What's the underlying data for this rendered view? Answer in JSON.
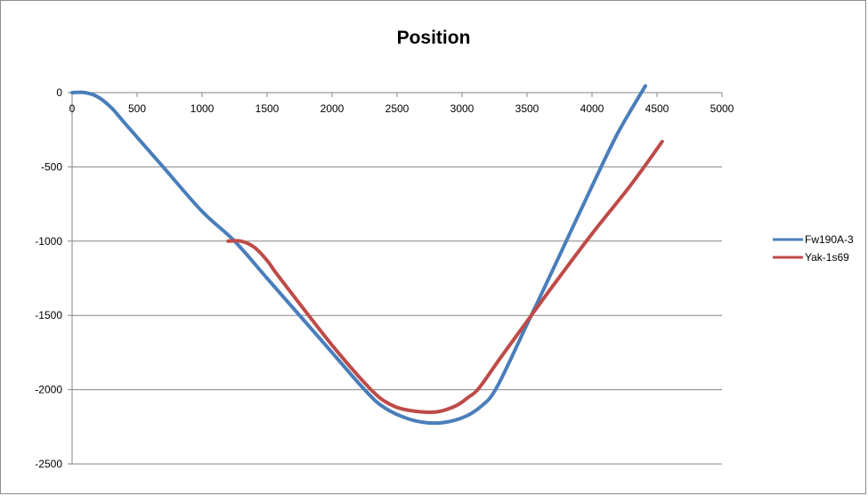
{
  "chart_data": {
    "type": "line",
    "title": "Position",
    "xlabel": "",
    "ylabel": "",
    "xlim": [
      0,
      5000
    ],
    "ylim": [
      -2500,
      0
    ],
    "x_ticks": [
      "0",
      "500",
      "1000",
      "1500",
      "2000",
      "2500",
      "3000",
      "3500",
      "4000",
      "4500",
      "5000"
    ],
    "y_ticks": [
      "0",
      "-500",
      "-1000",
      "-1500",
      "-2000",
      "-2500"
    ],
    "grid": "horizontal",
    "x_axis_position": "top",
    "legend_position": "right",
    "series": [
      {
        "name": "Fw190A-3",
        "color": "#4a7ebb",
        "points": [
          [
            0,
            0
          ],
          [
            100,
            0
          ],
          [
            200,
            -30
          ],
          [
            300,
            -100
          ],
          [
            400,
            -200
          ],
          [
            700,
            -500
          ],
          [
            1000,
            -800
          ],
          [
            1250,
            -1000
          ],
          [
            1500,
            -1250
          ],
          [
            1800,
            -1550
          ],
          [
            2000,
            -1750
          ],
          [
            2250,
            -2000
          ],
          [
            2400,
            -2120
          ],
          [
            2600,
            -2200
          ],
          [
            2800,
            -2225
          ],
          [
            3000,
            -2190
          ],
          [
            3150,
            -2110
          ],
          [
            3270,
            -1980
          ],
          [
            3500,
            -1560
          ],
          [
            3700,
            -1190
          ],
          [
            4000,
            -630
          ],
          [
            4200,
            -270
          ],
          [
            4410,
            45
          ]
        ]
      },
      {
        "name": "Yak-1s69",
        "color": "#be4b48",
        "points": [
          [
            1200,
            -1000
          ],
          [
            1300,
            -1000
          ],
          [
            1400,
            -1040
          ],
          [
            1500,
            -1130
          ],
          [
            1600,
            -1250
          ],
          [
            2000,
            -1700
          ],
          [
            2300,
            -2000
          ],
          [
            2450,
            -2100
          ],
          [
            2600,
            -2140
          ],
          [
            2800,
            -2150
          ],
          [
            2950,
            -2110
          ],
          [
            3050,
            -2050
          ],
          [
            3130,
            -1990
          ],
          [
            3300,
            -1780
          ],
          [
            3500,
            -1540
          ],
          [
            3700,
            -1300
          ],
          [
            4000,
            -950
          ],
          [
            4300,
            -620
          ],
          [
            4540,
            -330
          ]
        ]
      }
    ]
  }
}
